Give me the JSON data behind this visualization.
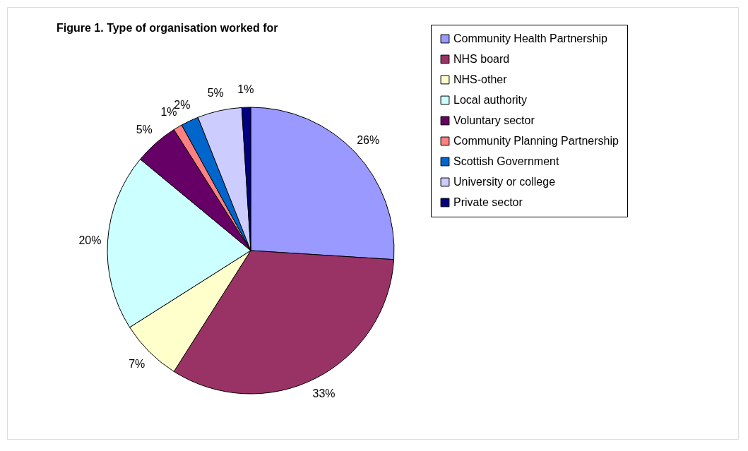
{
  "chart_data": {
    "type": "pie",
    "title": "Figure 1. Type of organisation worked for",
    "categories": [
      "Community Health Partnership",
      "NHS board",
      "NHS-other",
      "Local authority",
      "Voluntary sector",
      "Community Planning Partnership",
      "Scottish Government",
      "University or college",
      "Private sector"
    ],
    "values": [
      26,
      33,
      7,
      20,
      5,
      1,
      2,
      5,
      1
    ],
    "colors": [
      "#9999ff",
      "#993366",
      "#ffffcc",
      "#ccffff",
      "#660066",
      "#ff8080",
      "#0066cc",
      "#ccccff",
      "#000080"
    ],
    "value_labels": [
      "26%",
      "33%",
      "7%",
      "20%",
      "5%",
      "1%",
      "2%",
      "5%",
      "1%"
    ],
    "legend": "right"
  }
}
